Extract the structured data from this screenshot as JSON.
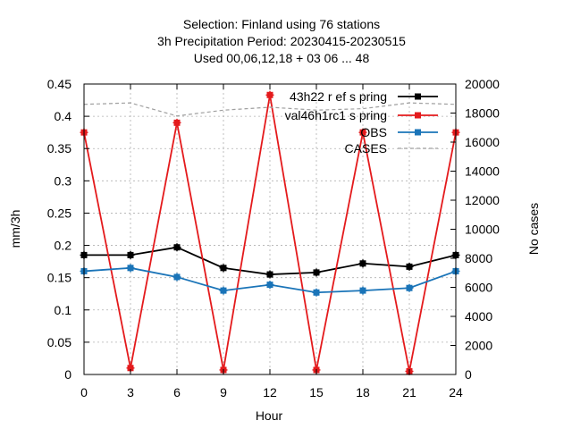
{
  "title_lines": [
    "Selection: Finland using    76 stations",
    "3h Precipitation   Period: 20230415-20230515",
    "Used  00,06,12,18  + 03 06 ... 48"
  ],
  "chart_data": {
    "type": "line",
    "title": "Selection: Finland using    76 stations\n3h Precipitation   Period: 20230415-20230515\nUsed  00,06,12,18  + 03 06 ... 48",
    "xlabel": "Hour",
    "ylabel": "mm/3h",
    "y2label": "No cases",
    "x": [
      0,
      3,
      6,
      9,
      12,
      15,
      18,
      21,
      24
    ],
    "xticks": [
      "0",
      "3",
      "6",
      "9",
      "12",
      "15",
      "18",
      "21",
      "24"
    ],
    "xlim": [
      0,
      24
    ],
    "ylim": [
      0,
      0.45
    ],
    "yticks": [
      "0",
      "0.05",
      "0.1",
      "0.15",
      "0.2",
      "0.25",
      "0.3",
      "0.35",
      "0.4",
      "0.45"
    ],
    "y2lim": [
      0,
      20000
    ],
    "y2ticks": [
      "0",
      "2000",
      "4000",
      "6000",
      "8000",
      "10000",
      "12000",
      "14000",
      "16000",
      "18000",
      "20000"
    ],
    "grid": true,
    "legend_position": "top-right",
    "series": [
      {
        "name": "43h22 r ef s pring",
        "color": "#000000",
        "axis": "left",
        "values": [
          0.185,
          0.185,
          0.197,
          0.165,
          0.155,
          0.158,
          0.172,
          0.167,
          0.185
        ]
      },
      {
        "name": "val46h1rc1 s pring",
        "color": "#e41a1c",
        "axis": "left",
        "values": [
          0.375,
          0.01,
          0.39,
          0.007,
          0.433,
          0.007,
          0.375,
          0.005,
          0.375
        ]
      },
      {
        "name": "OBS",
        "color": "#1a74b8",
        "axis": "left",
        "values": [
          0.16,
          0.165,
          0.151,
          0.13,
          0.139,
          0.127,
          0.13,
          0.134,
          0.16
        ]
      },
      {
        "name": "CASES",
        "color": "#a0a0a0",
        "axis": "right",
        "dashed": true,
        "values": [
          18600,
          18700,
          17800,
          18200,
          18400,
          18200,
          18300,
          18700,
          18600
        ]
      }
    ]
  }
}
